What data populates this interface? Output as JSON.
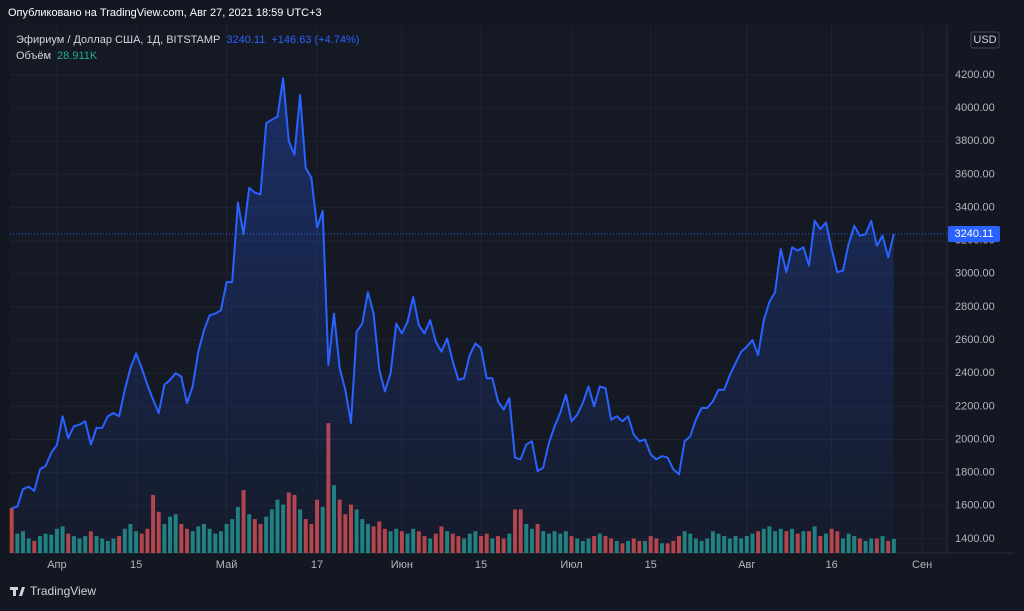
{
  "header": {
    "published": "Опубликовано на TradingView.com, Авг 27, 2021 18:59 UTC+3"
  },
  "footer": {
    "brand": "TradingView"
  },
  "chart_data": {
    "type": "line",
    "title": "Эфириум / Доллар США, 1Д, BITSTAMP",
    "change": "+146.63 (+4.74%)",
    "volume_title": "Объём",
    "volume_last_label": "28.911K",
    "currency": "USD",
    "grid": true,
    "xlim": [
      -0.3,
      165.4
    ],
    "xticks": [
      {
        "value": 8,
        "label": "Апр"
      },
      {
        "value": 22,
        "label": "15"
      },
      {
        "value": 38,
        "label": "Май"
      },
      {
        "value": 54,
        "label": "17"
      },
      {
        "value": 69,
        "label": "Июн"
      },
      {
        "value": 83,
        "label": "15"
      },
      {
        "value": 99,
        "label": "Июл"
      },
      {
        "value": 113,
        "label": "15"
      },
      {
        "value": 130,
        "label": "Авг"
      },
      {
        "value": 145,
        "label": "16"
      },
      {
        "value": 161,
        "label": "Сен"
      }
    ],
    "ylim": [
      1315,
      4502
    ],
    "yticks": [
      {
        "value": 1400,
        "label": "1400.00"
      },
      {
        "value": 1600,
        "label": "1600.00"
      },
      {
        "value": 1800,
        "label": "1800.00"
      },
      {
        "value": 2000,
        "label": "2000.00"
      },
      {
        "value": 2200,
        "label": "2200.00"
      },
      {
        "value": 2400,
        "label": "2400.00"
      },
      {
        "value": 2600,
        "label": "2600.00"
      },
      {
        "value": 2800,
        "label": "2800.00"
      },
      {
        "value": 3000,
        "label": "3000.00"
      },
      {
        "value": 3200,
        "label": "3200.00"
      },
      {
        "value": 3400,
        "label": "3400.00"
      },
      {
        "value": 3600,
        "label": "3600.00"
      },
      {
        "value": 3800,
        "label": "3800.00"
      },
      {
        "value": 4000,
        "label": "4000.00"
      },
      {
        "value": 4200,
        "label": "4200.00"
      }
    ],
    "y2lim": [
      0,
      1090000
    ],
    "series": [
      {
        "color": "#2962ff",
        "values": [
          1585,
          1595,
          1700,
          1715,
          1690,
          1820,
          1840,
          1920,
          1967,
          2140,
          2010,
          2080,
          2090,
          2110,
          1970,
          2070,
          2070,
          2140,
          2160,
          2140,
          2300,
          2430,
          2520,
          2430,
          2330,
          2240,
          2160,
          2330,
          2360,
          2400,
          2380,
          2220,
          2320,
          2530,
          2660,
          2750,
          2760,
          2780,
          2950,
          2950,
          3430,
          3240,
          3520,
          3490,
          3480,
          3910,
          3930,
          3950,
          4180,
          3800,
          3720,
          4080,
          3640,
          3580,
          3280,
          3380,
          2450,
          2760,
          2430,
          2300,
          2100,
          2650,
          2700,
          2890,
          2760,
          2420,
          2290,
          2400,
          2700,
          2640,
          2710,
          2860,
          2690,
          2640,
          2720,
          2590,
          2530,
          2610,
          2470,
          2360,
          2370,
          2510,
          2580,
          2550,
          2370,
          2370,
          2230,
          2180,
          2250,
          1890,
          1880,
          1970,
          1990,
          1810,
          1830,
          1980,
          2080,
          2160,
          2270,
          2110,
          2150,
          2220,
          2320,
          2200,
          2320,
          2310,
          2120,
          2140,
          2110,
          2140,
          2030,
          1990,
          2000,
          1910,
          1880,
          1900,
          1890,
          1820,
          1790,
          1990,
          2020,
          2120,
          2190,
          2190,
          2230,
          2300,
          2300,
          2390,
          2460,
          2530,
          2560,
          2600,
          2510,
          2720,
          2830,
          2890,
          3150,
          3010,
          3160,
          3140,
          3160,
          3050,
          3320,
          3270,
          3310,
          3150,
          3010,
          3020,
          3180,
          3290,
          3230,
          3240,
          3320,
          3170,
          3230,
          3100,
          3240.11
        ]
      },
      {
        "axis": "y2",
        "up_color": "#26a69a",
        "down_color": "#ef5350",
        "values": [
          93000,
          40000,
          45000,
          30000,
          25000,
          35000,
          40000,
          38000,
          50000,
          55000,
          40000,
          35000,
          30000,
          35000,
          45000,
          35000,
          30000,
          25000,
          30000,
          35000,
          50000,
          60000,
          45000,
          40000,
          50000,
          120000,
          85000,
          60000,
          75000,
          80000,
          60000,
          50000,
          45000,
          55000,
          60000,
          50000,
          40000,
          45000,
          60000,
          70000,
          95000,
          130000,
          80000,
          70000,
          60000,
          75000,
          90000,
          110000,
          100000,
          125000,
          120000,
          90000,
          70000,
          60000,
          110000,
          95000,
          268000,
          140000,
          110000,
          80000,
          100000,
          90000,
          70000,
          60000,
          55000,
          65000,
          50000,
          45000,
          50000,
          45000,
          40000,
          50000,
          45000,
          35000,
          30000,
          40000,
          55000,
          45000,
          40000,
          35000,
          30000,
          40000,
          45000,
          35000,
          40000,
          30000,
          35000,
          30000,
          40000,
          90000,
          90000,
          60000,
          50000,
          60000,
          45000,
          40000,
          45000,
          40000,
          45000,
          35000,
          30000,
          25000,
          30000,
          35000,
          40000,
          35000,
          30000,
          25000,
          20000,
          25000,
          30000,
          25000,
          25000,
          35000,
          30000,
          20000,
          20000,
          25000,
          35000,
          45000,
          40000,
          30000,
          25000,
          30000,
          45000,
          40000,
          35000,
          30000,
          35000,
          30000,
          35000,
          40000,
          45000,
          50000,
          55000,
          45000,
          50000,
          45000,
          50000,
          40000,
          45000,
          45000,
          55000,
          35000,
          40000,
          50000,
          45000,
          30000,
          40000,
          35000,
          30000,
          25000,
          30000,
          30000,
          35000,
          25000,
          28911
        ]
      }
    ]
  }
}
